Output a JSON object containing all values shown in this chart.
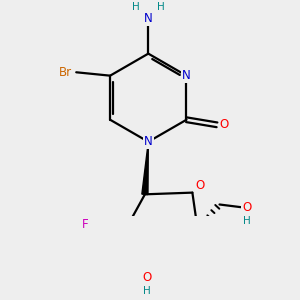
{
  "background_color": "#eeeeee",
  "atom_colors": {
    "N": "#0000cc",
    "O": "#ff0000",
    "Br": "#cc6600",
    "F": "#cc00bb",
    "H": "#008888"
  },
  "bond_color": "#000000",
  "lw": 1.6,
  "fs": 8.5,
  "fs_small": 7.5
}
